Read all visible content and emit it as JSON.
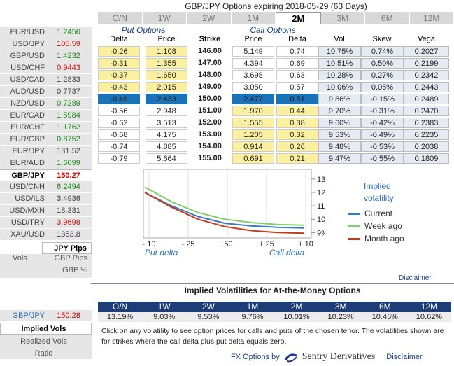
{
  "title": "GBP/JPY Options expiring 2018-05-29 (63 Days)",
  "tenors": [
    "O/N",
    "1W",
    "2W",
    "1M",
    "2M",
    "3M",
    "6M",
    "12M"
  ],
  "active_tenor": "2M",
  "sidebar": {
    "pairs": [
      {
        "sym": "EUR/USD",
        "rate": "1.2456",
        "dir": "up"
      },
      {
        "sym": "USD/JPY",
        "rate": "105.59",
        "dir": "down"
      },
      {
        "sym": "GBP/USD",
        "rate": "1.4232",
        "dir": "up"
      },
      {
        "sym": "USD/CHF",
        "rate": "0.9443",
        "dir": "down"
      },
      {
        "sym": "USD/CAD",
        "rate": "1.2833",
        "dir": "flat"
      },
      {
        "sym": "AUD/USD",
        "rate": "0.7737",
        "dir": "flat"
      },
      {
        "sym": "NZD/USD",
        "rate": "0.7289",
        "dir": "up"
      },
      {
        "sym": "EUR/CAD",
        "rate": "1.5984",
        "dir": "up"
      },
      {
        "sym": "EUR/CHF",
        "rate": "1.1762",
        "dir": "up"
      },
      {
        "sym": "EUR/GBP",
        "rate": "0.8752",
        "dir": "up"
      },
      {
        "sym": "EUR/JPY",
        "rate": "131.52",
        "dir": "flat"
      },
      {
        "sym": "EUR/AUD",
        "rate": "1.6099",
        "dir": "up"
      },
      {
        "sym": "GBP/JPY",
        "rate": "150.27",
        "dir": "sel"
      },
      {
        "sym": "USD/CNH",
        "rate": "6.2494",
        "dir": "up"
      },
      {
        "sym": "USD/ILS",
        "rate": "3.4936",
        "dir": "flat"
      },
      {
        "sym": "USD/MXN",
        "rate": "18.331",
        "dir": "flat"
      },
      {
        "sym": "USD/TRY",
        "rate": "3.9698",
        "dir": "down"
      },
      {
        "sym": "XAU/USD",
        "rate": "1353.8",
        "dir": "flat"
      }
    ],
    "pips_label": "JPY Pips",
    "vols_label": "Vols",
    "gbp_pips_label": "GBP Pips",
    "gbp_pct_label": "GBP %",
    "bottom_pair": {
      "sym": "GBP/JPY",
      "rate": "150.28"
    },
    "implied_vols_label": "Implied Vols",
    "realized_vols_label": "Realized Vols",
    "ratio_label": "Ratio"
  },
  "table": {
    "put_group": "Put Options",
    "call_group": "Call Options",
    "headers": {
      "put_delta": "Delta",
      "put_price": "Price",
      "strike": "Strike",
      "call_price": "Price",
      "call_delta": "Delta",
      "vol": "Vol",
      "skew": "Skew",
      "vega": "Vega"
    },
    "rows": [
      {
        "pd": "-0.26",
        "pp": "1.108",
        "k": "146.00",
        "cp": "5.149",
        "cd": "0.74",
        "vol": "10.75%",
        "skew": "0.74%",
        "vega": "0.2027",
        "side": "put"
      },
      {
        "pd": "-0.31",
        "pp": "1.355",
        "k": "147.00",
        "cp": "4.394",
        "cd": "0.69",
        "vol": "10.51%",
        "skew": "0.50%",
        "vega": "0.2199",
        "side": "put"
      },
      {
        "pd": "-0.37",
        "pp": "1.650",
        "k": "148.00",
        "cp": "3.698",
        "cd": "0.63",
        "vol": "10.28%",
        "skew": "0.27%",
        "vega": "0.2342",
        "side": "put"
      },
      {
        "pd": "-0.43",
        "pp": "2.015",
        "k": "149.00",
        "cp": "3.050",
        "cd": "0.57",
        "vol": "10.06%",
        "skew": "0.05%",
        "vega": "0.2443",
        "side": "put"
      },
      {
        "pd": "-0.49",
        "pp": "2.433",
        "k": "150.00",
        "cp": "2.477",
        "cd": "0.51",
        "vol": "9.86%",
        "skew": "-0.15%",
        "vega": "0.2489",
        "side": "atm"
      },
      {
        "pd": "-0.56",
        "pp": "2.948",
        "k": "151.00",
        "cp": "1.970",
        "cd": "0.44",
        "vol": "9.70%",
        "skew": "-0.31%",
        "vega": "0.2470",
        "side": "call"
      },
      {
        "pd": "-0.62",
        "pp": "3.513",
        "k": "152.00",
        "cp": "1.555",
        "cd": "0.38",
        "vol": "9.60%",
        "skew": "-0.42%",
        "vega": "0.2383",
        "side": "call"
      },
      {
        "pd": "-0.68",
        "pp": "4.175",
        "k": "153.00",
        "cp": "1.205",
        "cd": "0.32",
        "vol": "9.53%",
        "skew": "-0.49%",
        "vega": "0.2235",
        "side": "call"
      },
      {
        "pd": "-0.74",
        "pp": "4.885",
        "k": "154.00",
        "cp": "0.914",
        "cd": "0.26",
        "vol": "9.48%",
        "skew": "-0.53%",
        "vega": "0.2038",
        "side": "call"
      },
      {
        "pd": "-0.79",
        "pp": "5.664",
        "k": "155.00",
        "cp": "0.691",
        "cd": "0.21",
        "vol": "9.47%",
        "skew": "-0.55%",
        "vega": "0.1809",
        "side": "call"
      }
    ]
  },
  "chart_data": {
    "type": "line",
    "title": "Implied volatility",
    "x_tick_labels": [
      "-.10",
      "-.25",
      ".50",
      "+.25",
      "+.10"
    ],
    "x_caption_left": "Put delta",
    "x_caption_right": "Call delta",
    "y_tick_labels": [
      "13%",
      "12%",
      "11%",
      "10%",
      "9%"
    ],
    "ylim": [
      8.6,
      13.2
    ],
    "series": [
      {
        "name": "Current",
        "color": "#3a78c2",
        "values": [
          12.0,
          11.0,
          10.2,
          9.7,
          9.5,
          9.4,
          9.35
        ]
      },
      {
        "name": "Week ago",
        "color": "#7fcf6a",
        "values": [
          12.4,
          11.3,
          10.5,
          10.0,
          9.75,
          9.6,
          9.55
        ]
      },
      {
        "name": "Month ago",
        "color": "#c43a1a",
        "values": [
          12.0,
          10.9,
          10.0,
          9.45,
          9.15,
          9.0,
          8.95
        ]
      }
    ]
  },
  "disclaimer": "Disclaimer",
  "atm": {
    "title": "Implied Volatilities for At-the-Money Options",
    "tenors": [
      "O/N",
      "1W",
      "2W",
      "1M",
      "2M",
      "3M",
      "6M",
      "12M"
    ],
    "values": [
      "13.19%",
      "9.03%",
      "9.53%",
      "9.76%",
      "10.01%",
      "10.23%",
      "10.45%",
      "10.62%"
    ],
    "note": "Click on any volatility to see option prices for calls and puts of the chosen tenor. The volatilities shown are for strikes where the call delta plus put delta equals zero."
  },
  "footer": {
    "label": "FX Options by",
    "brand": "Sentry Derivatives",
    "disclaimer": "Disclaimer"
  }
}
